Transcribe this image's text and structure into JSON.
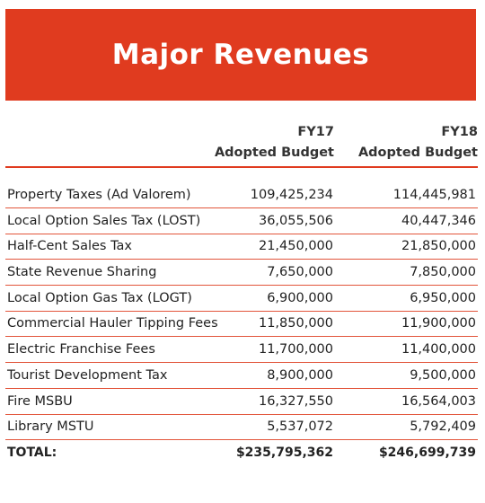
{
  "title": "Major Revenues",
  "columns": {
    "fy17": {
      "year": "FY17",
      "label": "Adopted Budget"
    },
    "fy18": {
      "year": "FY18",
      "label": "Adopted Budget"
    }
  },
  "rows": [
    {
      "name": "Property Taxes (Ad Valorem)",
      "fy17": "109,425,234",
      "fy18": "114,445,981"
    },
    {
      "name": "Local Option Sales Tax (LOST)",
      "fy17": "36,055,506",
      "fy18": "40,447,346"
    },
    {
      "name": "Half-Cent Sales Tax",
      "fy17": "21,450,000",
      "fy18": "21,850,000"
    },
    {
      "name": "State Revenue Sharing",
      "fy17": "7,650,000",
      "fy18": "7,850,000"
    },
    {
      "name": "Local Option Gas Tax (LOGT)",
      "fy17": "6,900,000",
      "fy18": "6,950,000"
    },
    {
      "name": "Commercial Hauler Tipping Fees",
      "fy17": "11,850,000",
      "fy18": "11,900,000"
    },
    {
      "name": "Electric Franchise Fees",
      "fy17": "11,700,000",
      "fy18": "11,400,000"
    },
    {
      "name": "Tourist Development Tax",
      "fy17": "8,900,000",
      "fy18": "9,500,000"
    },
    {
      "name": "Fire MSBU",
      "fy17": "16,327,550",
      "fy18": "16,564,003"
    },
    {
      "name": "Library MSTU",
      "fy17": "5,537,072",
      "fy18": "5,792,409"
    }
  ],
  "total": {
    "name": "TOTAL:",
    "fy17": "$235,795,362",
    "fy18": "$246,699,739"
  },
  "colors": {
    "accent": "#e03b1f",
    "rule": "#e2553b",
    "text": "#222222"
  }
}
